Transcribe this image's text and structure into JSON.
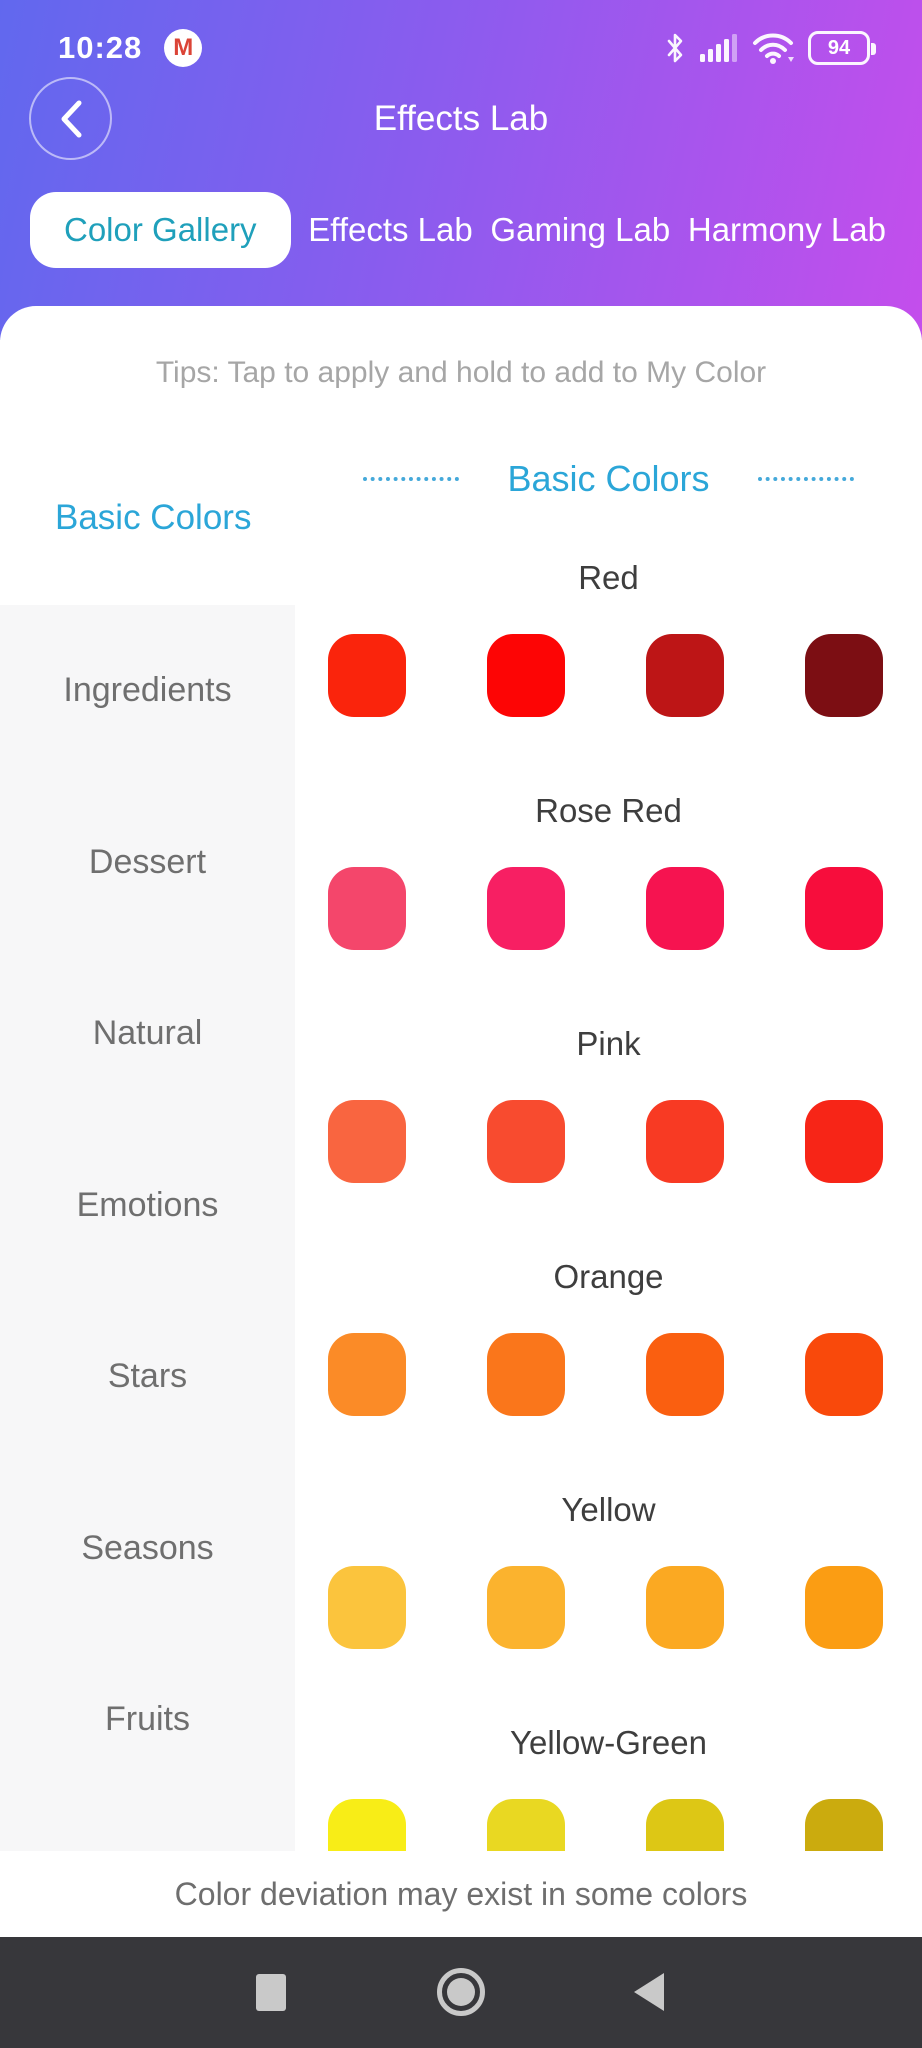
{
  "status_bar": {
    "time": "10:28",
    "battery_percent": "94",
    "icons": [
      "gmail-notification-icon",
      "bluetooth-icon",
      "signal-icon",
      "wifi-icon",
      "battery-icon"
    ]
  },
  "header": {
    "title": "Effects Lab",
    "back_icon": "chevron-left-icon"
  },
  "tabs": [
    {
      "label": "Color Gallery",
      "active": true
    },
    {
      "label": "Effects Lab",
      "active": false
    },
    {
      "label": "Gaming Lab",
      "active": false
    },
    {
      "label": "Harmony Lab",
      "active": false
    }
  ],
  "tips": "Tips: Tap to apply and hold to add to My Color",
  "section": {
    "title": "Basic Colors"
  },
  "sidebar": {
    "active_category": "Basic Colors",
    "items": [
      "Ingredients",
      "Dessert",
      "Natural",
      "Emotions",
      "Stars",
      "Seasons",
      "Fruits"
    ]
  },
  "color_groups": [
    {
      "name": "Red",
      "swatches": [
        "#fa240c",
        "#fd0505",
        "#bd1516",
        "#7c0e13"
      ]
    },
    {
      "name": "Rose Red",
      "swatches": [
        "#f4466b",
        "#f71f63",
        "#f61350",
        "#f70d3c"
      ]
    },
    {
      "name": "Pink",
      "swatches": [
        "#f96540",
        "#f84b2f",
        "#f83a23",
        "#f72517"
      ]
    },
    {
      "name": "Orange",
      "swatches": [
        "#fb8b27",
        "#fa761b",
        "#fa5f10",
        "#f9490b"
      ]
    },
    {
      "name": "Yellow",
      "swatches": [
        "#fbc43d",
        "#fbb32e",
        "#fba922",
        "#fb9d13"
      ]
    },
    {
      "name": "Yellow-Green",
      "swatches": [
        "#f8ed17",
        "#e9d822",
        "#ddc715",
        "#cbab0e"
      ]
    }
  ],
  "footer": {
    "note": "Color deviation may exist in some colors"
  },
  "nav_bar": {
    "icons": [
      "recents-square-icon",
      "home-circle-icon",
      "back-triangle-icon"
    ]
  },
  "colors": {
    "gradient_left": "#6168ee",
    "gradient_right": "#c44eec",
    "accent_blue": "#2ba6d8",
    "tab_active_text": "#1fa0bb",
    "sidebar_bg": "#f7f7f8",
    "nav_bar_bg": "#37373b"
  }
}
